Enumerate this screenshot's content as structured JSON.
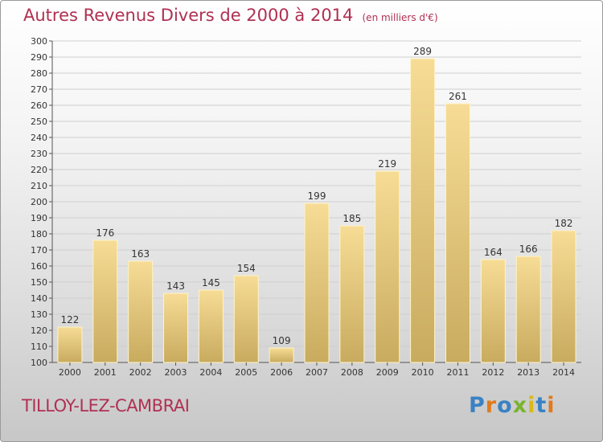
{
  "title": "Autres Revenus Divers de 2000 à 2014",
  "unit": "(en milliers d'€)",
  "location": "TILLOY-LEZ-CAMBRAI",
  "logo": {
    "text": "Proxiti",
    "letters": [
      {
        "char": "P",
        "color": "#3a82c4"
      },
      {
        "char": "r",
        "color": "#e07a1f"
      },
      {
        "char": "o",
        "color": "#3a82c4"
      },
      {
        "char": "x",
        "color": "#7ab32e"
      },
      {
        "char": "i",
        "color": "#d8b91a"
      },
      {
        "char": "t",
        "color": "#3a82c4"
      },
      {
        "char": "i",
        "color": "#e07a1f"
      }
    ]
  },
  "colors": {
    "bar_light": "#f7dc96",
    "bar_dark": "#c8ab5e",
    "title": "#b03052",
    "grid": "#cfcfcf"
  },
  "chart_data": {
    "type": "bar",
    "categories": [
      "2000",
      "2001",
      "2002",
      "2003",
      "2004",
      "2005",
      "2006",
      "2007",
      "2008",
      "2009",
      "2010",
      "2011",
      "2012",
      "2013",
      "2014"
    ],
    "values": [
      122,
      176,
      163,
      143,
      145,
      154,
      109,
      199,
      185,
      219,
      289,
      261,
      164,
      166,
      182
    ],
    "ylim": [
      100,
      300
    ],
    "yticks": [
      100,
      110,
      120,
      130,
      140,
      150,
      160,
      170,
      180,
      190,
      200,
      210,
      220,
      230,
      240,
      250,
      260,
      270,
      280,
      290,
      300
    ],
    "grid": true,
    "data_labels": true
  }
}
